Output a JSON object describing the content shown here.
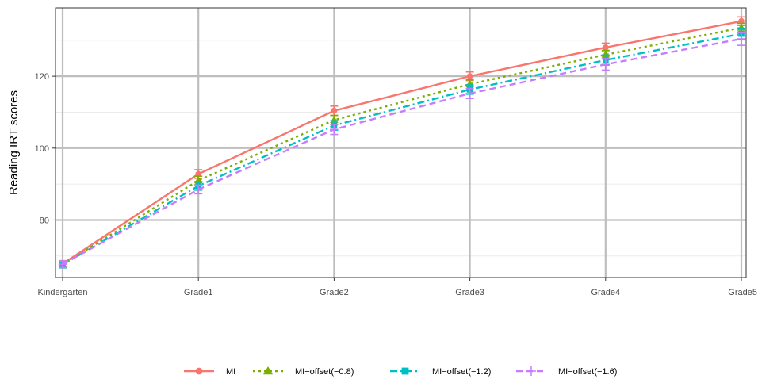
{
  "chart_data": {
    "type": "line",
    "title": "",
    "xlabel": "",
    "ylabel": "Reading IRT scores",
    "categories": [
      "Kindergarten",
      "Grade1",
      "Grade2",
      "Grade3",
      "Grade4",
      "Grade5"
    ],
    "ylim": [
      64,
      139
    ],
    "yticks": [
      80,
      100,
      120
    ],
    "grid": true,
    "legend_position": "bottom",
    "series": [
      {
        "name": "MI",
        "color": "#F8766D",
        "marker": "circle",
        "dash": "solid",
        "values": [
          67.8,
          92.8,
          110.4,
          120.0,
          128.0,
          135.3
        ],
        "errors": [
          0.9,
          1.2,
          1.3,
          1.2,
          1.2,
          1.2
        ]
      },
      {
        "name": "MI−offset(−0.8)",
        "color": "#7CAE00",
        "marker": "triangle",
        "dash": "dotted",
        "values": [
          67.6,
          91.0,
          107.8,
          117.8,
          126.0,
          133.5
        ],
        "errors": [
          0.9,
          1.2,
          1.3,
          1.2,
          1.2,
          1.2
        ]
      },
      {
        "name": "MI−offset(−1.2)",
        "color": "#00BFC4",
        "marker": "square",
        "dash": "dashdot",
        "values": [
          67.6,
          89.5,
          106.3,
          116.3,
          124.5,
          131.8
        ],
        "errors": [
          0.9,
          1.2,
          1.3,
          1.3,
          1.4,
          1.5
        ]
      },
      {
        "name": "MI−offset(−1.6)",
        "color": "#C77CFF",
        "marker": "cross",
        "dash": "dashed",
        "values": [
          67.7,
          88.5,
          105.2,
          115.2,
          123.3,
          130.4
        ],
        "errors": [
          0.9,
          1.2,
          1.4,
          1.4,
          1.6,
          1.8
        ]
      }
    ]
  }
}
